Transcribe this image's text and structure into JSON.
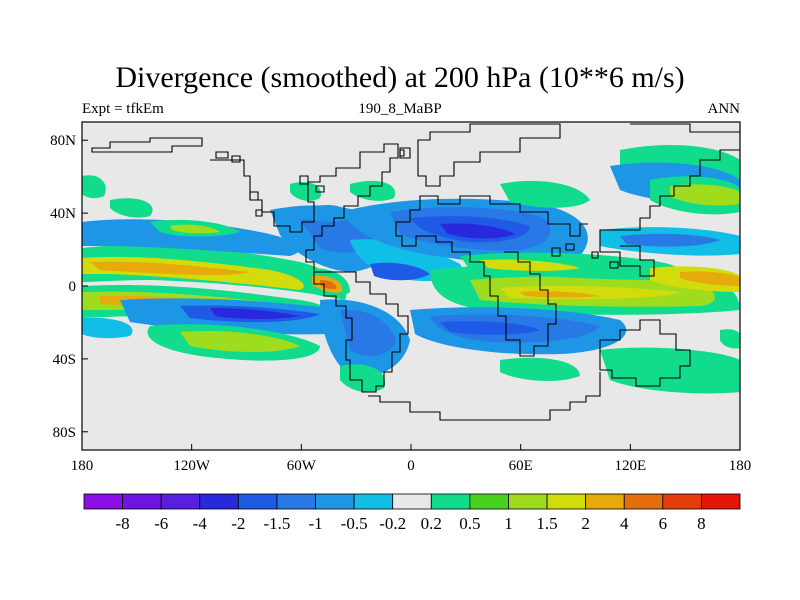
{
  "header": {
    "title": "Divergence (smoothed) at 200 hPa (10**6 m/s)",
    "left_label": "Expt = tfkEm",
    "center_label": "190_8_MaBP",
    "right_label": "ANN"
  },
  "map": {
    "lon_range": [
      -180,
      180
    ],
    "lat_range": [
      -90,
      90
    ],
    "x_ticks": [
      {
        "value": -180,
        "label": "180"
      },
      {
        "value": -120,
        "label": "120W"
      },
      {
        "value": -60,
        "label": "60W"
      },
      {
        "value": 0,
        "label": "0"
      },
      {
        "value": 60,
        "label": "60E"
      },
      {
        "value": 120,
        "label": "120E"
      },
      {
        "value": 180,
        "label": "180"
      }
    ],
    "y_ticks": [
      {
        "value": 80,
        "label": "80N"
      },
      {
        "value": 40,
        "label": "40N"
      },
      {
        "value": 0,
        "label": "0"
      },
      {
        "value": -40,
        "label": "40S"
      },
      {
        "value": -80,
        "label": "80S"
      }
    ],
    "background_color": "#e8e8e8",
    "coastline_color": "#000000"
  },
  "colorbar": {
    "colors": [
      "#8a0ee6",
      "#6e14e0",
      "#5a1ee0",
      "#2828dc",
      "#1e5ae6",
      "#2878e6",
      "#1e96e6",
      "#10bee6",
      "#e8e8e8",
      "#10dc8c",
      "#46d21e",
      "#a0dc1e",
      "#d2dc0a",
      "#e6aa0a",
      "#e66e0a",
      "#e63c0a",
      "#e6140a"
    ],
    "labels": [
      "-8",
      "-6",
      "-4",
      "-2",
      "-1.5",
      "-1",
      "-0.5",
      "-0.2",
      "0.2",
      "0.5",
      "1",
      "1.5",
      "2",
      "4",
      "6",
      "8"
    ]
  }
}
